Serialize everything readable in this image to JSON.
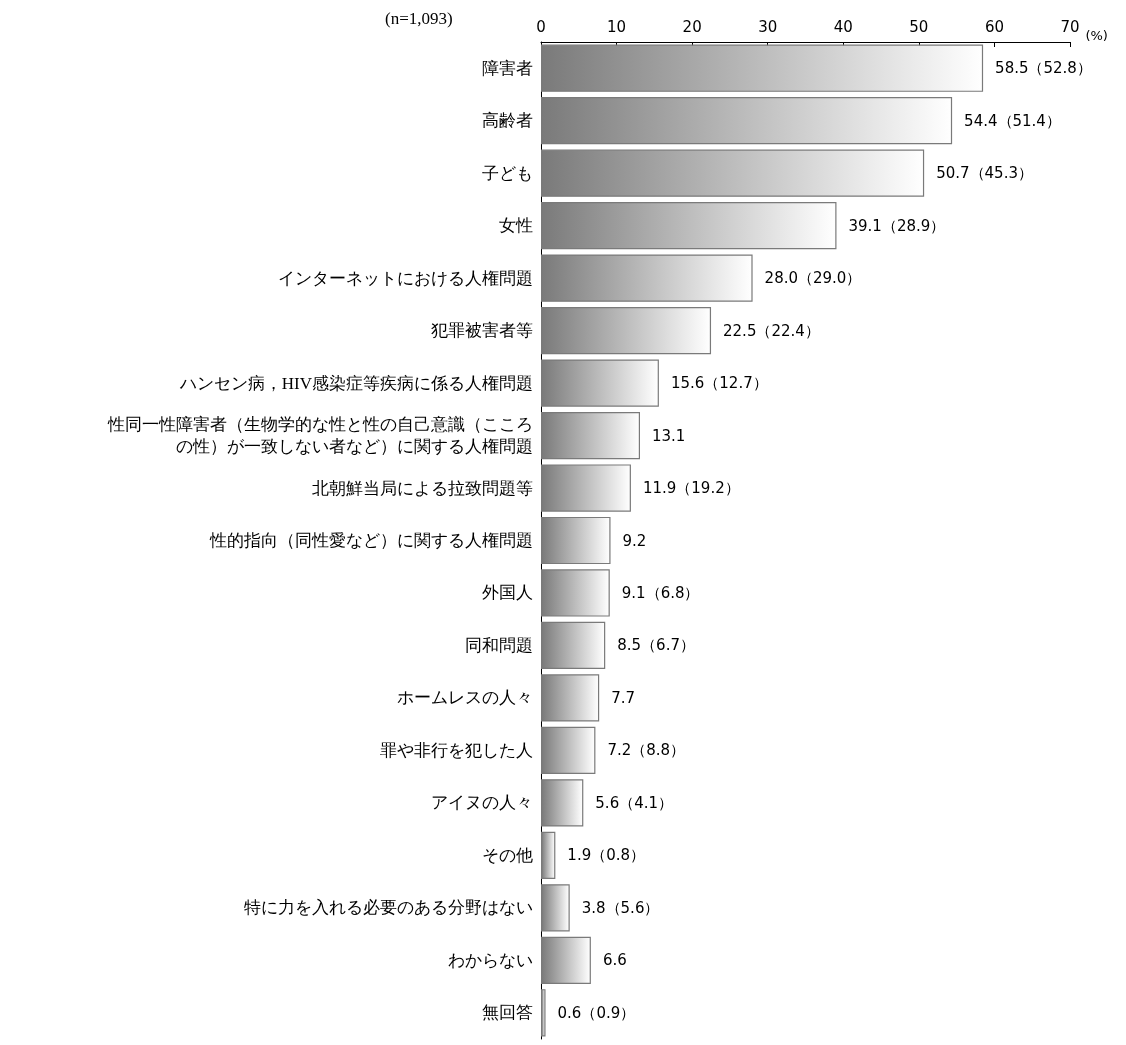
{
  "chart_data": {
    "type": "bar",
    "orientation": "horizontal",
    "xlabel": "(%)",
    "annotations": [
      "(n=1,093)"
    ],
    "categories": [
      "障害者",
      "高齢者",
      "子ども",
      "女性",
      "インターネットにおける人権問題",
      "犯罪被害者等",
      "ハンセン病，HIV感染症等疾病に係る人権問題",
      "性同一性障害者（生物学的な性と性の自己意識（こころの性）が一致しない者など）に関する人権問題",
      "北朝鮮当局による拉致問題等",
      "性的指向（同性愛など）に関する人権問題",
      "外国人",
      "同和問題",
      "ホームレスの人々",
      "罪や非行を犯した人",
      "アイヌの人々",
      "その他",
      "特に力を入れる必要のある分野はない",
      "わからない",
      "無回答"
    ],
    "values": [
      58.5,
      54.4,
      50.7,
      39.1,
      28.0,
      22.5,
      15.6,
      13.1,
      11.9,
      9.2,
      9.1,
      8.5,
      7.7,
      7.2,
      5.6,
      1.9,
      3.8,
      6.6,
      0.6
    ],
    "value_labels": [
      "58.5（52.8）",
      "54.4（51.4）",
      "50.7（45.3）",
      "39.1（28.9）",
      "28.0（29.0）",
      "22.5（22.4）",
      "15.6（12.7）",
      "13.1",
      "11.9（19.2）",
      "9.2",
      "9.1（6.8）",
      "8.5（6.7）",
      "7.7",
      "7.2（8.8）",
      "5.6（4.1）",
      "1.9（0.8）",
      "3.8（5.6）",
      "6.6",
      "0.6（0.9）"
    ],
    "color": "#7a7a7a",
    "xlim": [
      0,
      70
    ],
    "xticks": [
      0,
      10,
      20,
      30,
      40,
      50,
      60,
      70
    ],
    "grid": false
  }
}
